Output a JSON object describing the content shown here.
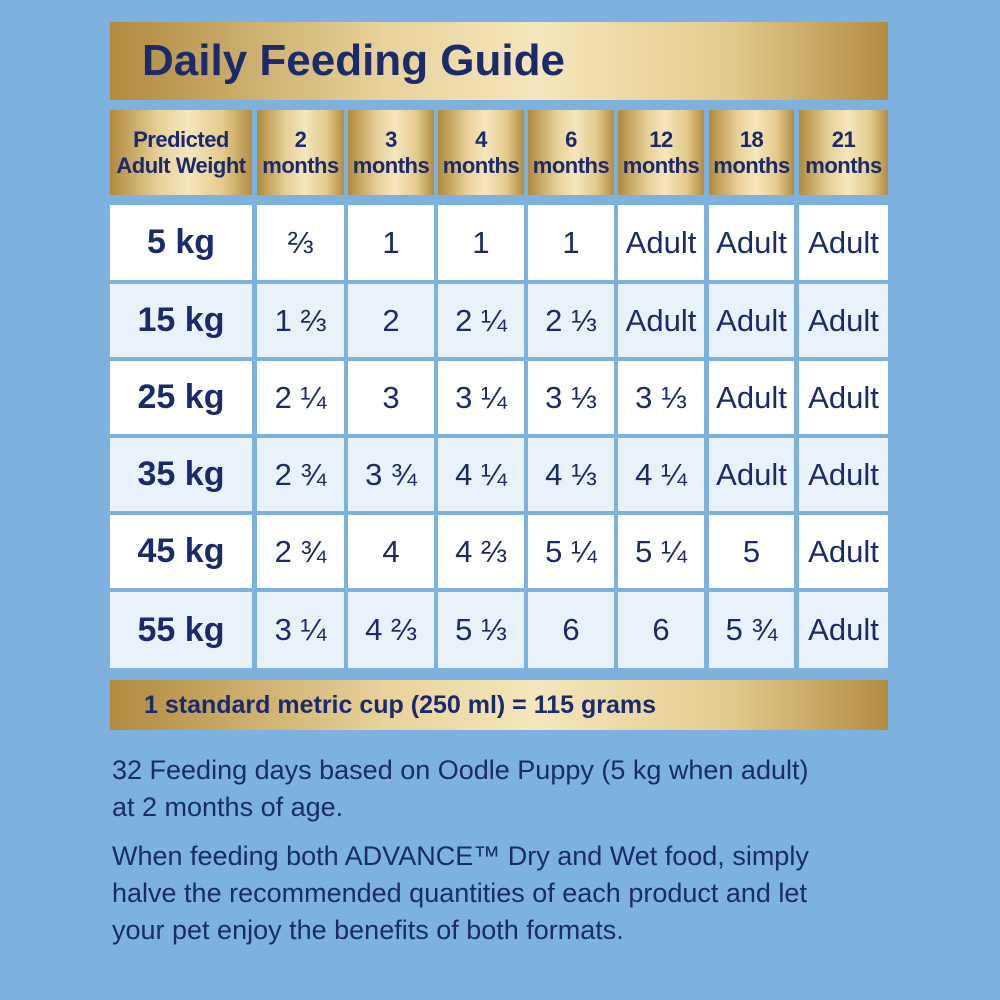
{
  "header": {
    "title": "Daily Feeding Guide"
  },
  "table": {
    "columns": [
      "Predicted Adult Weight",
      "2 months",
      "3 months",
      "4 months",
      "6 months",
      "12 months",
      "18 months",
      "21 months"
    ],
    "rows": [
      [
        "5 kg",
        "⅔",
        "1",
        "1",
        "1",
        "Adult",
        "Adult",
        "Adult"
      ],
      [
        "15 kg",
        "1 ⅔",
        "2",
        "2 ¼",
        "2 ⅓",
        "Adult",
        "Adult",
        "Adult"
      ],
      [
        "25 kg",
        "2 ¼",
        "3",
        "3 ¼",
        "3 ⅓",
        "3 ⅓",
        "Adult",
        "Adult"
      ],
      [
        "35 kg",
        "2 ¾",
        "3 ¾",
        "4 ¼",
        "4 ⅓",
        "4 ¼",
        "Adult",
        "Adult"
      ],
      [
        "45 kg",
        "2 ¾",
        "4",
        "4 ⅔",
        "5 ¼",
        "5 ¼",
        "5",
        "Adult"
      ],
      [
        "55 kg",
        "3 ¼",
        "4 ⅔",
        "5 ⅓",
        "6",
        "6",
        "5 ¾",
        "Adult"
      ]
    ]
  },
  "footer": {
    "note": "1 standard metric cup (250 ml) = 115 grams"
  },
  "paragraphs": [
    "32 Feeding days based on Oodle Puppy (5 kg when adult) at 2 months of age.",
    "When feeding both ADVANCE™ Dry and Wet food, simply halve the recommended quantities of each product and let your pet enjoy the benefits of both formats."
  ]
}
